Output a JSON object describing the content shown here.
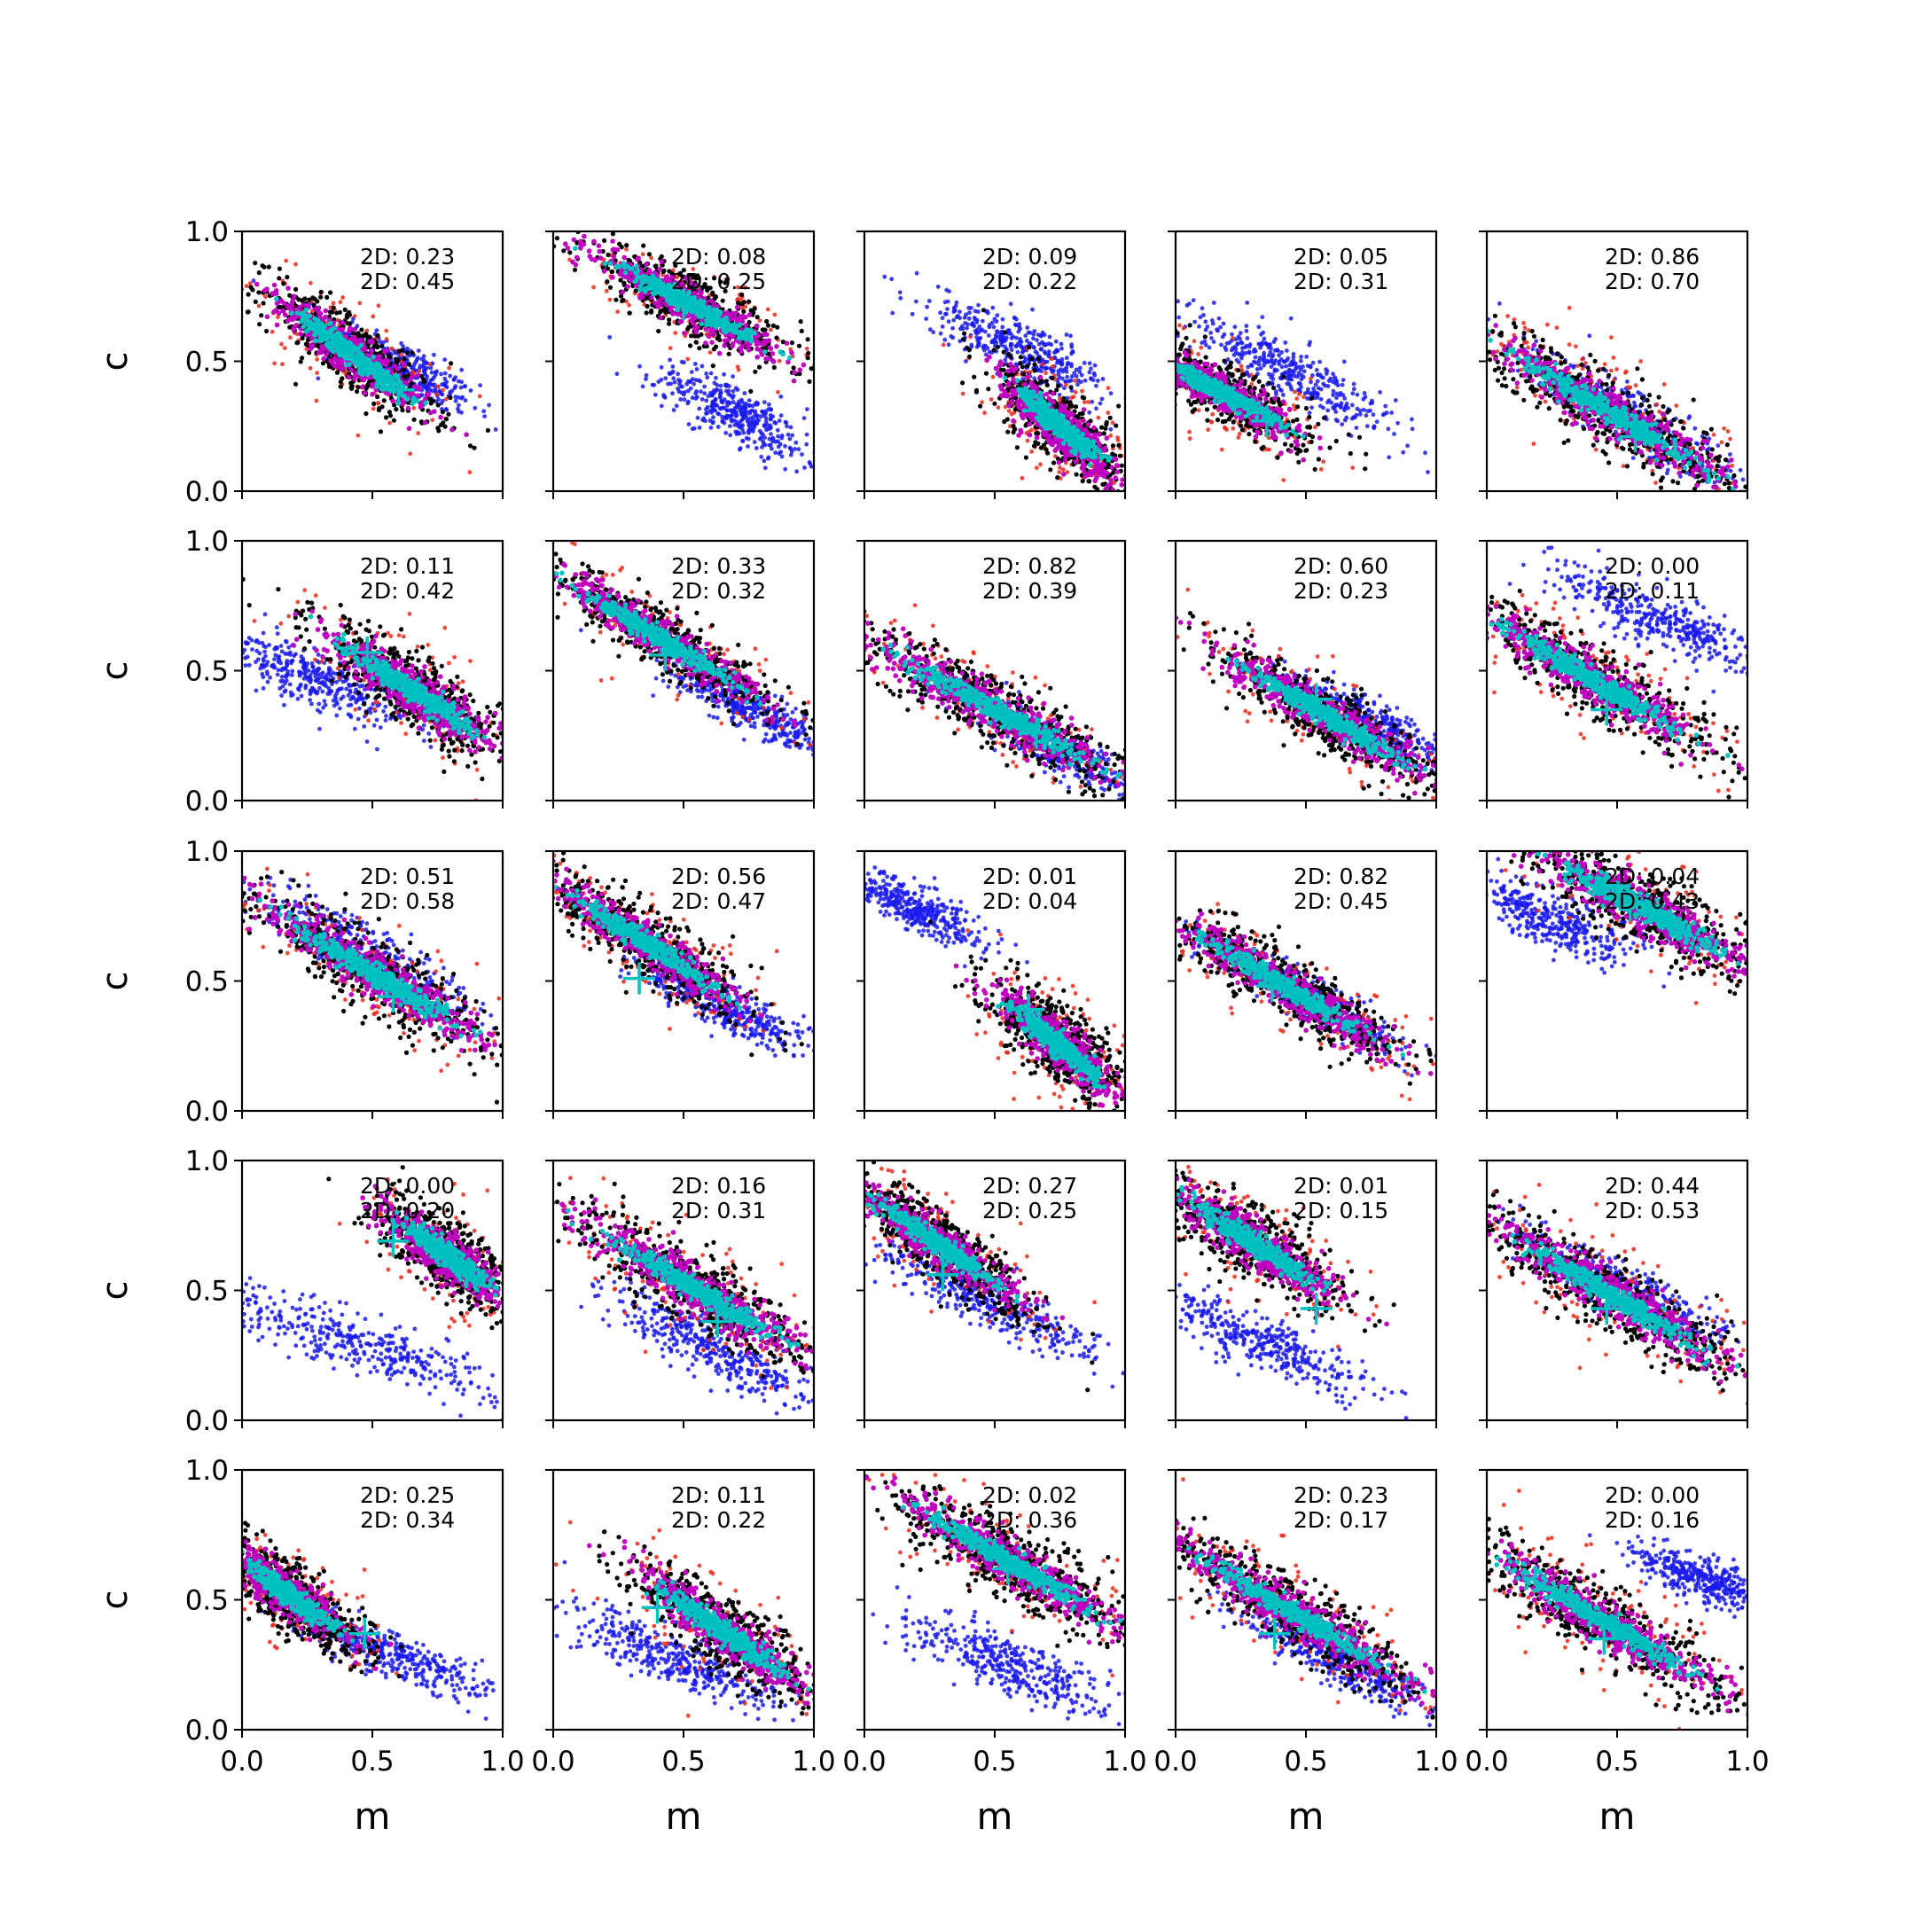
{
  "figure": {
    "xlabel": "m",
    "ylabel": "c",
    "xticks": [
      "0.0",
      "0.5",
      "1.0"
    ],
    "yticks": [
      "0.0",
      "0.5",
      "1.0"
    ]
  },
  "colors": {
    "blue": "#1a1aee",
    "red": "#ee2a1a",
    "black": "#000000",
    "magenta": "#c000c0",
    "cyan": "#00c0c0",
    "axes": "#000000"
  },
  "chart_data": {
    "type": "scatter",
    "grid": "5x5",
    "xlim": [
      0,
      1
    ],
    "ylim": [
      0,
      1
    ],
    "xlabel": "m",
    "ylabel": "c",
    "grid_lines": false,
    "legend": "none",
    "annotation_prefix": "2D:",
    "series_colors": [
      "blue",
      "red",
      "black",
      "magenta",
      "cyan"
    ],
    "panels": [
      {
        "row": 0,
        "col": 0,
        "labels": [
          "2D: 0.23",
          "2D: 0.45"
        ],
        "blue": {
          "cx": 0.6,
          "cy": 0.48,
          "len": 0.5,
          "slope": -0.55,
          "w": 0.09
        },
        "main": {
          "cx": 0.42,
          "cy": 0.53,
          "len": 0.62,
          "slope": -0.75,
          "w": 0.11
        },
        "cross": [
          0.6,
          0.39
        ]
      },
      {
        "row": 0,
        "col": 1,
        "labels": [
          "2D: 0.08",
          "2D: 0.25"
        ],
        "blue": {
          "cx": 0.7,
          "cy": 0.3,
          "len": 0.55,
          "slope": -0.55,
          "w": 0.1
        },
        "main": {
          "cx": 0.52,
          "cy": 0.72,
          "len": 0.7,
          "slope": -0.55,
          "w": 0.1
        },
        "cross": [
          0.5,
          0.72
        ]
      },
      {
        "row": 0,
        "col": 2,
        "labels": [
          "2D: 0.09",
          "2D: 0.22"
        ],
        "blue": {
          "cx": 0.6,
          "cy": 0.55,
          "len": 0.6,
          "slope": -0.5,
          "w": 0.1
        },
        "main": {
          "cx": 0.75,
          "cy": 0.25,
          "len": 0.5,
          "slope": -0.9,
          "w": 0.12
        },
        "cross": [
          0.68,
          0.31
        ]
      },
      {
        "row": 0,
        "col": 3,
        "labels": [
          "2D: 0.05",
          "2D: 0.31"
        ],
        "blue": {
          "cx": 0.45,
          "cy": 0.45,
          "len": 0.75,
          "slope": -0.5,
          "w": 0.1
        },
        "main": {
          "cx": 0.18,
          "cy": 0.38,
          "len": 0.6,
          "slope": -0.55,
          "w": 0.1
        },
        "cross": [
          0.35,
          0.27
        ]
      },
      {
        "row": 0,
        "col": 4,
        "labels": [
          "2D: 0.86",
          "2D: 0.70"
        ],
        "blue": {
          "cx": 0.55,
          "cy": 0.28,
          "len": 0.8,
          "slope": -0.6,
          "w": 0.1
        },
        "main": {
          "cx": 0.48,
          "cy": 0.3,
          "len": 0.95,
          "slope": -0.6,
          "w": 0.12
        },
        "cross": [
          0.57,
          0.21
        ]
      },
      {
        "row": 1,
        "col": 0,
        "labels": [
          "2D: 0.11",
          "2D: 0.42"
        ],
        "blue": {
          "cx": 0.28,
          "cy": 0.47,
          "len": 0.65,
          "slope": -0.45,
          "w": 0.1
        },
        "main": {
          "cx": 0.66,
          "cy": 0.42,
          "len": 0.7,
          "slope": -0.65,
          "w": 0.12
        },
        "cross": [
          0.48,
          0.57
        ]
      },
      {
        "row": 1,
        "col": 1,
        "labels": [
          "2D: 0.33",
          "2D: 0.32"
        ],
        "blue": {
          "cx": 0.75,
          "cy": 0.35,
          "len": 0.6,
          "slope": -0.5,
          "w": 0.08
        },
        "main": {
          "cx": 0.42,
          "cy": 0.62,
          "len": 0.85,
          "slope": -0.6,
          "w": 0.1
        },
        "cross": [
          0.43,
          0.56
        ]
      },
      {
        "row": 1,
        "col": 2,
        "labels": [
          "2D: 0.82",
          "2D: 0.39"
        ],
        "blue": {
          "cx": 0.7,
          "cy": 0.22,
          "len": 0.6,
          "slope": -0.55,
          "w": 0.08
        },
        "main": {
          "cx": 0.5,
          "cy": 0.35,
          "len": 1.0,
          "slope": -0.55,
          "w": 0.12
        },
        "cross": [
          0.66,
          0.26
        ]
      },
      {
        "row": 1,
        "col": 3,
        "labels": [
          "2D: 0.60",
          "2D: 0.23"
        ],
        "blue": {
          "cx": 0.75,
          "cy": 0.3,
          "len": 0.6,
          "slope": -0.55,
          "w": 0.08
        },
        "main": {
          "cx": 0.57,
          "cy": 0.33,
          "len": 0.85,
          "slope": -0.6,
          "w": 0.11
        },
        "cross": [
          0.54,
          0.39
        ]
      },
      {
        "row": 1,
        "col": 4,
        "labels": [
          "2D: 0.00",
          "2D: 0.11"
        ],
        "blue": {
          "cx": 0.65,
          "cy": 0.7,
          "len": 0.7,
          "slope": -0.45,
          "w": 0.1
        },
        "main": {
          "cx": 0.4,
          "cy": 0.47,
          "len": 0.85,
          "slope": -0.6,
          "w": 0.12
        },
        "cross": [
          0.46,
          0.35
        ]
      },
      {
        "row": 2,
        "col": 0,
        "labels": [
          "2D: 0.51",
          "2D: 0.58"
        ],
        "blue": {
          "cx": 0.45,
          "cy": 0.62,
          "len": 0.8,
          "slope": -0.55,
          "w": 0.1
        },
        "main": {
          "cx": 0.52,
          "cy": 0.52,
          "len": 0.9,
          "slope": -0.6,
          "w": 0.12
        },
        "cross": [
          0.58,
          0.44
        ]
      },
      {
        "row": 2,
        "col": 1,
        "labels": [
          "2D: 0.56",
          "2D: 0.47"
        ],
        "blue": {
          "cx": 0.65,
          "cy": 0.4,
          "len": 0.6,
          "slope": -0.5,
          "w": 0.08
        },
        "main": {
          "cx": 0.35,
          "cy": 0.65,
          "len": 0.75,
          "slope": -0.65,
          "w": 0.11
        },
        "cross": [
          0.33,
          0.51
        ]
      },
      {
        "row": 2,
        "col": 2,
        "labels": [
          "2D: 0.01",
          "2D: 0.04"
        ],
        "blue": {
          "cx": 0.18,
          "cy": 0.78,
          "len": 0.45,
          "slope": -0.5,
          "w": 0.08
        },
        "main": {
          "cx": 0.75,
          "cy": 0.25,
          "len": 0.55,
          "slope": -0.85,
          "w": 0.12
        },
        "cross": [
          0.63,
          0.39
        ]
      },
      {
        "row": 2,
        "col": 3,
        "labels": [
          "2D: 0.82",
          "2D: 0.45"
        ],
        "blue": {
          "cx": 0.5,
          "cy": 0.45,
          "len": 0.7,
          "slope": -0.6,
          "w": 0.08
        },
        "main": {
          "cx": 0.42,
          "cy": 0.48,
          "len": 0.85,
          "slope": -0.6,
          "w": 0.11
        },
        "cross": [
          0.37,
          0.48
        ]
      },
      {
        "row": 2,
        "col": 4,
        "labels": [
          "2D: 0.04",
          "2D: 0.43"
        ],
        "blue": {
          "cx": 0.25,
          "cy": 0.73,
          "len": 0.6,
          "slope": -0.4,
          "w": 0.1
        },
        "main": {
          "cx": 0.6,
          "cy": 0.78,
          "len": 0.9,
          "slope": -0.55,
          "w": 0.13
        },
        "cross": [
          0.55,
          0.79
        ]
      },
      {
        "row": 3,
        "col": 0,
        "labels": [
          "2D: 0.00",
          "2D: 0.20"
        ],
        "blue": {
          "cx": 0.45,
          "cy": 0.3,
          "len": 0.9,
          "slope": -0.35,
          "w": 0.1
        },
        "main": {
          "cx": 0.78,
          "cy": 0.64,
          "len": 0.5,
          "slope": -0.75,
          "w": 0.12
        },
        "cross": [
          0.58,
          0.69
        ]
      },
      {
        "row": 3,
        "col": 1,
        "labels": [
          "2D: 0.16",
          "2D: 0.31"
        ],
        "blue": {
          "cx": 0.6,
          "cy": 0.28,
          "len": 0.7,
          "slope": -0.5,
          "w": 0.1
        },
        "main": {
          "cx": 0.55,
          "cy": 0.5,
          "len": 0.9,
          "slope": -0.6,
          "w": 0.12
        },
        "cross": [
          0.63,
          0.38
        ]
      },
      {
        "row": 3,
        "col": 2,
        "labels": [
          "2D: 0.27",
          "2D: 0.25"
        ],
        "blue": {
          "cx": 0.45,
          "cy": 0.47,
          "len": 0.75,
          "slope": -0.5,
          "w": 0.09
        },
        "main": {
          "cx": 0.28,
          "cy": 0.68,
          "len": 0.7,
          "slope": -0.7,
          "w": 0.11
        },
        "cross": [
          0.3,
          0.56
        ]
      },
      {
        "row": 3,
        "col": 3,
        "labels": [
          "2D: 0.01",
          "2D: 0.15"
        ],
        "blue": {
          "cx": 0.33,
          "cy": 0.3,
          "len": 0.75,
          "slope": -0.45,
          "w": 0.1
        },
        "main": {
          "cx": 0.3,
          "cy": 0.68,
          "len": 0.65,
          "slope": -0.65,
          "w": 0.12
        },
        "cross": [
          0.54,
          0.43
        ]
      },
      {
        "row": 3,
        "col": 4,
        "labels": [
          "2D: 0.44",
          "2D: 0.53"
        ],
        "blue": {
          "cx": 0.5,
          "cy": 0.52,
          "len": 0.75,
          "slope": -0.5,
          "w": 0.09
        },
        "main": {
          "cx": 0.48,
          "cy": 0.48,
          "len": 0.9,
          "slope": -0.6,
          "w": 0.12
        },
        "cross": [
          0.46,
          0.43
        ]
      },
      {
        "row": 4,
        "col": 0,
        "labels": [
          "2D: 0.25",
          "2D: 0.34"
        ],
        "blue": {
          "cx": 0.55,
          "cy": 0.3,
          "len": 0.7,
          "slope": -0.4,
          "w": 0.08
        },
        "main": {
          "cx": 0.18,
          "cy": 0.52,
          "len": 0.55,
          "slope": -0.75,
          "w": 0.11
        },
        "cross": [
          0.47,
          0.37
        ]
      },
      {
        "row": 4,
        "col": 1,
        "labels": [
          "2D: 0.11",
          "2D: 0.22"
        ],
        "blue": {
          "cx": 0.45,
          "cy": 0.28,
          "len": 0.75,
          "slope": -0.4,
          "w": 0.1
        },
        "main": {
          "cx": 0.65,
          "cy": 0.38,
          "len": 0.7,
          "slope": -0.7,
          "w": 0.12
        },
        "cross": [
          0.4,
          0.47
        ]
      },
      {
        "row": 4,
        "col": 2,
        "labels": [
          "2D: 0.02",
          "2D: 0.36"
        ],
        "blue": {
          "cx": 0.55,
          "cy": 0.25,
          "len": 0.7,
          "slope": -0.4,
          "w": 0.1
        },
        "main": {
          "cx": 0.55,
          "cy": 0.65,
          "len": 0.85,
          "slope": -0.6,
          "w": 0.12
        },
        "cross": [
          0.55,
          0.62
        ]
      },
      {
        "row": 4,
        "col": 3,
        "labels": [
          "2D: 0.23",
          "2D: 0.17"
        ],
        "blue": {
          "cx": 0.6,
          "cy": 0.28,
          "len": 0.7,
          "slope": -0.55,
          "w": 0.08
        },
        "main": {
          "cx": 0.45,
          "cy": 0.45,
          "len": 0.95,
          "slope": -0.6,
          "w": 0.12
        },
        "cross": [
          0.38,
          0.37
        ]
      },
      {
        "row": 4,
        "col": 4,
        "labels": [
          "2D: 0.00",
          "2D: 0.16"
        ],
        "blue": {
          "cx": 0.83,
          "cy": 0.58,
          "len": 0.45,
          "slope": -0.4,
          "w": 0.08
        },
        "main": {
          "cx": 0.43,
          "cy": 0.43,
          "len": 0.95,
          "slope": -0.6,
          "w": 0.12
        },
        "cross": [
          0.45,
          0.35
        ]
      }
    ]
  }
}
